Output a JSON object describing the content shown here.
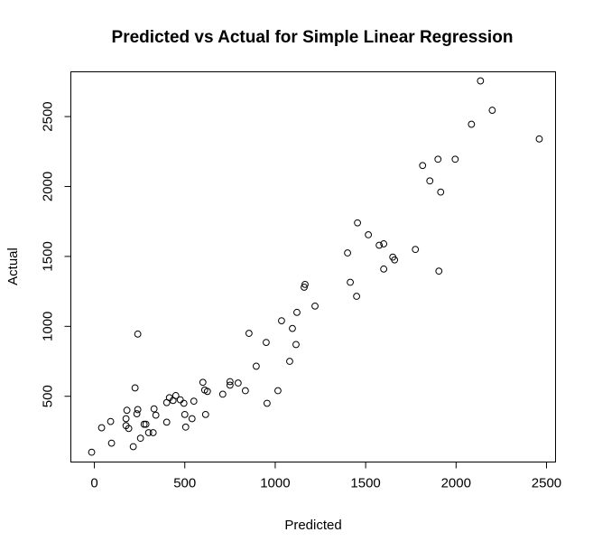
{
  "chart_data": {
    "type": "scatter",
    "title": "Predicted vs Actual for Simple Linear Regression",
    "xlabel": "Predicted",
    "ylabel": "Actual",
    "xlim": [
      -130,
      2550
    ],
    "ylim": [
      30,
      2820
    ],
    "xticks": [
      0,
      500,
      1000,
      1500,
      2000,
      2500
    ],
    "yticks": [
      500,
      1000,
      1500,
      2000,
      2500
    ],
    "grid": false,
    "legend": "none",
    "marker": "open-circle",
    "points": [
      {
        "x": -15,
        "y": 100
      },
      {
        "x": 40,
        "y": 275
      },
      {
        "x": 90,
        "y": 320
      },
      {
        "x": 95,
        "y": 165
      },
      {
        "x": 175,
        "y": 340
      },
      {
        "x": 175,
        "y": 290
      },
      {
        "x": 180,
        "y": 400
      },
      {
        "x": 190,
        "y": 270
      },
      {
        "x": 215,
        "y": 140
      },
      {
        "x": 225,
        "y": 560
      },
      {
        "x": 235,
        "y": 375
      },
      {
        "x": 240,
        "y": 945
      },
      {
        "x": 240,
        "y": 405
      },
      {
        "x": 255,
        "y": 200
      },
      {
        "x": 275,
        "y": 300
      },
      {
        "x": 285,
        "y": 300
      },
      {
        "x": 300,
        "y": 240
      },
      {
        "x": 325,
        "y": 240
      },
      {
        "x": 330,
        "y": 410
      },
      {
        "x": 340,
        "y": 365
      },
      {
        "x": 400,
        "y": 315
      },
      {
        "x": 400,
        "y": 455
      },
      {
        "x": 415,
        "y": 490
      },
      {
        "x": 435,
        "y": 470
      },
      {
        "x": 450,
        "y": 505
      },
      {
        "x": 475,
        "y": 475
      },
      {
        "x": 495,
        "y": 450
      },
      {
        "x": 500,
        "y": 370
      },
      {
        "x": 505,
        "y": 280
      },
      {
        "x": 540,
        "y": 340
      },
      {
        "x": 550,
        "y": 465
      },
      {
        "x": 600,
        "y": 600
      },
      {
        "x": 610,
        "y": 545
      },
      {
        "x": 615,
        "y": 370
      },
      {
        "x": 625,
        "y": 535
      },
      {
        "x": 710,
        "y": 515
      },
      {
        "x": 750,
        "y": 605
      },
      {
        "x": 750,
        "y": 580
      },
      {
        "x": 795,
        "y": 595
      },
      {
        "x": 835,
        "y": 540
      },
      {
        "x": 855,
        "y": 950
      },
      {
        "x": 895,
        "y": 715
      },
      {
        "x": 950,
        "y": 885
      },
      {
        "x": 955,
        "y": 450
      },
      {
        "x": 1015,
        "y": 540
      },
      {
        "x": 1035,
        "y": 1040
      },
      {
        "x": 1080,
        "y": 750
      },
      {
        "x": 1095,
        "y": 985
      },
      {
        "x": 1115,
        "y": 870
      },
      {
        "x": 1120,
        "y": 1100
      },
      {
        "x": 1160,
        "y": 1280
      },
      {
        "x": 1165,
        "y": 1300
      },
      {
        "x": 1220,
        "y": 1145
      },
      {
        "x": 1400,
        "y": 1525
      },
      {
        "x": 1415,
        "y": 1315
      },
      {
        "x": 1450,
        "y": 1215
      },
      {
        "x": 1455,
        "y": 1740
      },
      {
        "x": 1515,
        "y": 1655
      },
      {
        "x": 1575,
        "y": 1580
      },
      {
        "x": 1600,
        "y": 1590
      },
      {
        "x": 1600,
        "y": 1410
      },
      {
        "x": 1650,
        "y": 1495
      },
      {
        "x": 1660,
        "y": 1475
      },
      {
        "x": 1775,
        "y": 1550
      },
      {
        "x": 1815,
        "y": 2150
      },
      {
        "x": 1855,
        "y": 2040
      },
      {
        "x": 1900,
        "y": 2195
      },
      {
        "x": 1905,
        "y": 1395
      },
      {
        "x": 1915,
        "y": 1960
      },
      {
        "x": 1995,
        "y": 2195
      },
      {
        "x": 2085,
        "y": 2445
      },
      {
        "x": 2135,
        "y": 2755
      },
      {
        "x": 2200,
        "y": 2545
      },
      {
        "x": 2460,
        "y": 2340
      }
    ]
  }
}
